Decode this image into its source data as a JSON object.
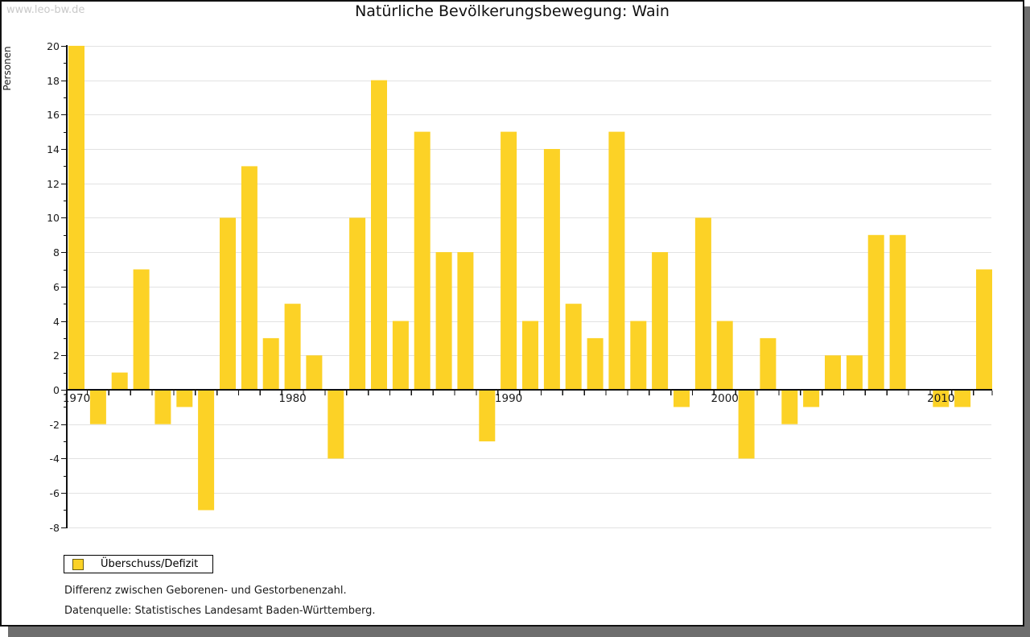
{
  "window": {
    "watermark": "www.leo-bw.de",
    "title": "Natürliche Bevölkerungsbewegung: Wain"
  },
  "chart_data": {
    "type": "bar",
    "title": "Natürliche Bevölkerungsbewegung: Wain",
    "xlabel": "",
    "ylabel": "Personen",
    "ylim": [
      -8,
      20
    ],
    "y_tick_interval": 1,
    "y_label_interval": 2,
    "grid": true,
    "legend_position": "bottom-left",
    "series_name": "Überschuss/Defizit",
    "categories": [
      1970,
      1971,
      1972,
      1973,
      1974,
      1975,
      1976,
      1977,
      1978,
      1979,
      1980,
      1981,
      1982,
      1983,
      1984,
      1985,
      1986,
      1987,
      1988,
      1989,
      1990,
      1991,
      1992,
      1993,
      1994,
      1995,
      1996,
      1997,
      1998,
      1999,
      2000,
      2001,
      2002,
      2003,
      2004,
      2005,
      2006,
      2007,
      2008,
      2009,
      2010,
      2011,
      2012
    ],
    "values": [
      20,
      -2,
      1,
      7,
      -2,
      -1,
      -7,
      10,
      13,
      3,
      5,
      2,
      -4,
      10,
      18,
      4,
      15,
      8,
      8,
      -3,
      15,
      4,
      14,
      5,
      3,
      15,
      4,
      8,
      -1,
      10,
      4,
      -4,
      3,
      -2,
      -1,
      2,
      2,
      9,
      9,
      0,
      -1,
      -1,
      7
    ],
    "x_axis_decade_labels": [
      "1970",
      "1980",
      "1990",
      "2000",
      "2010"
    ]
  },
  "legend": {
    "label": "Überschuss/Defizit",
    "swatch_color": "#fcd226",
    "swatch_border_color": "#6b5e12"
  },
  "notes": {
    "line1": "Differenz zwischen Geborenen- und Gestorbenenzahl.",
    "line2": "Datenquelle: Statistisches Landesamt Baden-Württemberg."
  },
  "colors": {
    "bar": "#fcd226",
    "grid": "#e2e2e2",
    "axis": "#111111",
    "tick_label": "#1a1a1a"
  }
}
